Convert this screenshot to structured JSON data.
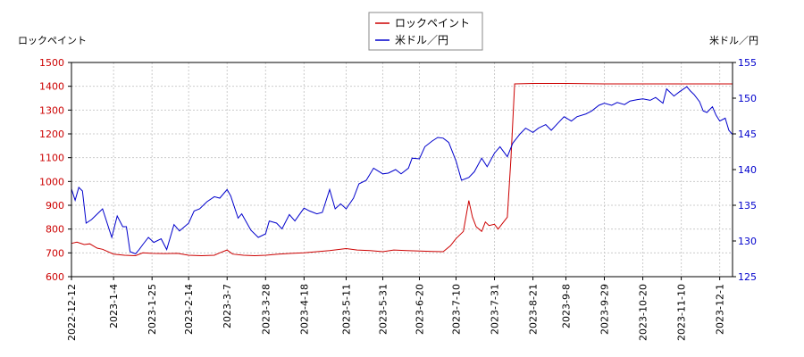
{
  "chart_data": {
    "type": "line",
    "legend": {
      "placement": "top-center",
      "entries": [
        {
          "name": "ロックペイント",
          "color": "#cc0000"
        },
        {
          "name": "米ドル／円",
          "color": "#0000cc"
        }
      ]
    },
    "y_left": {
      "label": "ロックペイント",
      "range": [
        600,
        1500
      ],
      "ticks": [
        "600",
        "700",
        "800",
        "900",
        "1000",
        "1100",
        "1200",
        "1300",
        "1400",
        "1500"
      ],
      "color": "#cc0000"
    },
    "y_right": {
      "label": "米ドル／円",
      "range": [
        125,
        155
      ],
      "ticks": [
        "125",
        "130",
        "135",
        "140",
        "145",
        "150",
        "155"
      ],
      "color": "#0000cc"
    },
    "x_axis": {
      "range": [
        "2022-12-12",
        "2023-12-08"
      ],
      "ticks": [
        "2022-12-12",
        "2023-1-4",
        "2023-1-25",
        "2023-2-14",
        "2023-3-7",
        "2023-3-28",
        "2023-4-18",
        "2023-5-11",
        "2023-5-31",
        "2023-6-20",
        "2023-7-10",
        "2023-7-31",
        "2023-8-21",
        "2023-9-8",
        "2023-9-29",
        "2023-10-20",
        "2023-11-10",
        "2023-12-1"
      ]
    },
    "grid": true,
    "series": [
      {
        "name": "ロックペイント",
        "axis": "left",
        "color": "#cc0000",
        "points": [
          [
            "2022-12-12",
            740
          ],
          [
            "2022-12-15",
            745
          ],
          [
            "2022-12-19",
            735
          ],
          [
            "2022-12-22",
            738
          ],
          [
            "2022-12-26",
            720
          ],
          [
            "2022-12-29",
            715
          ],
          [
            "2023-01-04",
            695
          ],
          [
            "2023-01-10",
            690
          ],
          [
            "2023-01-16",
            688
          ],
          [
            "2023-01-20",
            700
          ],
          [
            "2023-01-25",
            698
          ],
          [
            "2023-02-01",
            697
          ],
          [
            "2023-02-08",
            698
          ],
          [
            "2023-02-14",
            690
          ],
          [
            "2023-02-21",
            688
          ],
          [
            "2023-02-28",
            690
          ],
          [
            "2023-03-03",
            700
          ],
          [
            "2023-03-07",
            712
          ],
          [
            "2023-03-10",
            695
          ],
          [
            "2023-03-16",
            690
          ],
          [
            "2023-03-22",
            688
          ],
          [
            "2023-03-28",
            690
          ],
          [
            "2023-04-04",
            695
          ],
          [
            "2023-04-11",
            698
          ],
          [
            "2023-04-18",
            700
          ],
          [
            "2023-04-25",
            705
          ],
          [
            "2023-05-02",
            710
          ],
          [
            "2023-05-08",
            715
          ],
          [
            "2023-05-11",
            718
          ],
          [
            "2023-05-17",
            712
          ],
          [
            "2023-05-24",
            710
          ],
          [
            "2023-05-31",
            705
          ],
          [
            "2023-06-06",
            712
          ],
          [
            "2023-06-13",
            710
          ],
          [
            "2023-06-20",
            708
          ],
          [
            "2023-06-27",
            706
          ],
          [
            "2023-07-03",
            705
          ],
          [
            "2023-07-07",
            730
          ],
          [
            "2023-07-10",
            760
          ],
          [
            "2023-07-14",
            790
          ],
          [
            "2023-07-17",
            920
          ],
          [
            "2023-07-19",
            850
          ],
          [
            "2023-07-21",
            810
          ],
          [
            "2023-07-24",
            790
          ],
          [
            "2023-07-26",
            830
          ],
          [
            "2023-07-28",
            815
          ],
          [
            "2023-07-31",
            820
          ],
          [
            "2023-08-02",
            800
          ],
          [
            "2023-08-04",
            820
          ],
          [
            "2023-08-07",
            850
          ],
          [
            "2023-08-09",
            1100
          ],
          [
            "2023-08-11",
            1410
          ],
          [
            "2023-08-21",
            1412
          ],
          [
            "2023-09-08",
            1412
          ],
          [
            "2023-09-29",
            1410
          ],
          [
            "2023-10-20",
            1410
          ],
          [
            "2023-11-10",
            1410
          ],
          [
            "2023-12-01",
            1410
          ],
          [
            "2023-12-08",
            1410
          ]
        ]
      },
      {
        "name": "米ドル／円",
        "axis": "right",
        "color": "#0000cc",
        "points": [
          [
            "2022-12-12",
            137.3
          ],
          [
            "2022-12-14",
            135.7
          ],
          [
            "2022-12-16",
            137.5
          ],
          [
            "2022-12-18",
            137.0
          ],
          [
            "2022-12-20",
            132.5
          ],
          [
            "2022-12-23",
            133.0
          ],
          [
            "2022-12-27",
            134.0
          ],
          [
            "2022-12-29",
            134.5
          ],
          [
            "2023-01-03",
            130.5
          ],
          [
            "2023-01-06",
            133.5
          ],
          [
            "2023-01-09",
            132.0
          ],
          [
            "2023-01-11",
            132.0
          ],
          [
            "2023-01-13",
            128.5
          ],
          [
            "2023-01-16",
            128.2
          ],
          [
            "2023-01-18",
            128.8
          ],
          [
            "2023-01-20",
            129.5
          ],
          [
            "2023-01-23",
            130.5
          ],
          [
            "2023-01-26",
            129.8
          ],
          [
            "2023-01-30",
            130.3
          ],
          [
            "2023-02-02",
            128.8
          ],
          [
            "2023-02-06",
            132.3
          ],
          [
            "2023-02-09",
            131.4
          ],
          [
            "2023-02-14",
            132.5
          ],
          [
            "2023-02-17",
            134.2
          ],
          [
            "2023-02-20",
            134.5
          ],
          [
            "2023-02-24",
            135.5
          ],
          [
            "2023-02-28",
            136.2
          ],
          [
            "2023-03-03",
            136.0
          ],
          [
            "2023-03-07",
            137.2
          ],
          [
            "2023-03-09",
            136.3
          ],
          [
            "2023-03-13",
            133.2
          ],
          [
            "2023-03-15",
            133.8
          ],
          [
            "2023-03-20",
            131.5
          ],
          [
            "2023-03-24",
            130.5
          ],
          [
            "2023-03-28",
            131.0
          ],
          [
            "2023-03-30",
            132.8
          ],
          [
            "2023-04-03",
            132.5
          ],
          [
            "2023-04-06",
            131.7
          ],
          [
            "2023-04-10",
            133.7
          ],
          [
            "2023-04-13",
            132.8
          ],
          [
            "2023-04-18",
            134.6
          ],
          [
            "2023-04-21",
            134.2
          ],
          [
            "2023-04-25",
            133.8
          ],
          [
            "2023-04-28",
            134.0
          ],
          [
            "2023-05-02",
            137.2
          ],
          [
            "2023-05-05",
            134.5
          ],
          [
            "2023-05-08",
            135.2
          ],
          [
            "2023-05-11",
            134.5
          ],
          [
            "2023-05-15",
            136.0
          ],
          [
            "2023-05-18",
            138.0
          ],
          [
            "2023-05-22",
            138.5
          ],
          [
            "2023-05-26",
            140.2
          ],
          [
            "2023-05-31",
            139.4
          ],
          [
            "2023-06-03",
            139.5
          ],
          [
            "2023-06-07",
            140.0
          ],
          [
            "2023-06-10",
            139.4
          ],
          [
            "2023-06-14",
            140.2
          ],
          [
            "2023-06-16",
            141.6
          ],
          [
            "2023-06-20",
            141.5
          ],
          [
            "2023-06-23",
            143.2
          ],
          [
            "2023-06-27",
            144.0
          ],
          [
            "2023-06-30",
            144.5
          ],
          [
            "2023-07-03",
            144.4
          ],
          [
            "2023-07-06",
            143.8
          ],
          [
            "2023-07-10",
            141.2
          ],
          [
            "2023-07-13",
            138.5
          ],
          [
            "2023-07-17",
            138.9
          ],
          [
            "2023-07-20",
            139.7
          ],
          [
            "2023-07-24",
            141.6
          ],
          [
            "2023-07-27",
            140.4
          ],
          [
            "2023-07-31",
            142.3
          ],
          [
            "2023-08-03",
            143.2
          ],
          [
            "2023-08-07",
            141.8
          ],
          [
            "2023-08-10",
            143.7
          ],
          [
            "2023-08-14",
            145.0
          ],
          [
            "2023-08-17",
            145.8
          ],
          [
            "2023-08-21",
            145.2
          ],
          [
            "2023-08-24",
            145.8
          ],
          [
            "2023-08-28",
            146.3
          ],
          [
            "2023-08-31",
            145.5
          ],
          [
            "2023-09-04",
            146.6
          ],
          [
            "2023-09-07",
            147.4
          ],
          [
            "2023-09-11",
            146.8
          ],
          [
            "2023-09-14",
            147.4
          ],
          [
            "2023-09-19",
            147.8
          ],
          [
            "2023-09-22",
            148.2
          ],
          [
            "2023-09-26",
            149.0
          ],
          [
            "2023-09-29",
            149.3
          ],
          [
            "2023-10-03",
            149.0
          ],
          [
            "2023-10-06",
            149.4
          ],
          [
            "2023-10-10",
            149.1
          ],
          [
            "2023-10-13",
            149.6
          ],
          [
            "2023-10-17",
            149.8
          ],
          [
            "2023-10-20",
            149.9
          ],
          [
            "2023-10-24",
            149.7
          ],
          [
            "2023-10-27",
            150.1
          ],
          [
            "2023-10-31",
            149.3
          ],
          [
            "2023-11-02",
            151.3
          ],
          [
            "2023-11-06",
            150.3
          ],
          [
            "2023-11-09",
            150.9
          ],
          [
            "2023-11-13",
            151.6
          ],
          [
            "2023-11-15",
            151.0
          ],
          [
            "2023-11-17",
            150.5
          ],
          [
            "2023-11-20",
            149.5
          ],
          [
            "2023-11-22",
            148.2
          ],
          [
            "2023-11-24",
            148.0
          ],
          [
            "2023-11-27",
            148.8
          ],
          [
            "2023-11-29",
            147.6
          ],
          [
            "2023-12-01",
            146.8
          ],
          [
            "2023-12-04",
            147.2
          ],
          [
            "2023-12-06",
            145.5
          ],
          [
            "2023-12-08",
            144.9
          ]
        ]
      }
    ]
  }
}
